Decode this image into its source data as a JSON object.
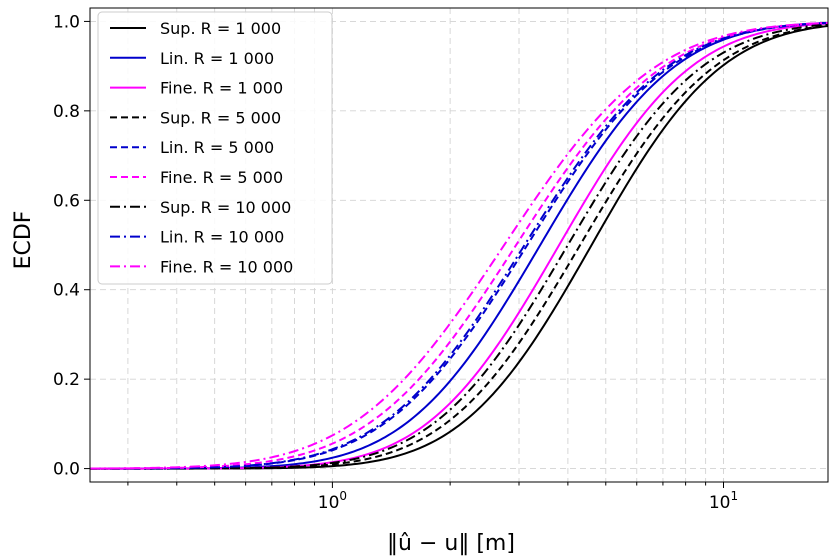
{
  "chart_data": {
    "type": "line",
    "title": "",
    "xlabel": "‖û − u‖ [m]",
    "ylabel": "ECDF",
    "xscale": "log",
    "xlim": [
      0.24,
      18.5
    ],
    "ylim": [
      -0.03,
      1.03
    ],
    "grid": true,
    "legend_position": "top-left",
    "x_ticks": [
      {
        "value": 1,
        "base": "10",
        "exp": "0"
      },
      {
        "value": 10,
        "base": "10",
        "exp": "1"
      }
    ],
    "y_ticks": [
      {
        "value": 0.0,
        "label": "0.0"
      },
      {
        "value": 0.2,
        "label": "0.2"
      },
      {
        "value": 0.4,
        "label": "0.4"
      },
      {
        "value": 0.6,
        "label": "0.6"
      },
      {
        "value": 0.8,
        "label": "0.8"
      },
      {
        "value": 1.0,
        "label": "1.0"
      }
    ],
    "series": [
      {
        "name": "Sup. R = 1 000",
        "color": "#000000",
        "dash": "solid",
        "median": 4.6,
        "sigma": 0.6
      },
      {
        "name": "Lin. R = 1 000",
        "color": "#0000cc",
        "dash": "solid",
        "median": 3.4,
        "sigma": 0.62
      },
      {
        "name": "Fine. R = 1 000",
        "color": "#ff00ff",
        "dash": "solid",
        "median": 3.8,
        "sigma": 0.61
      },
      {
        "name": "Sup. R = 5 000",
        "color": "#000000",
        "dash": "dashed",
        "median": 4.3,
        "sigma": 0.62
      },
      {
        "name": "Lin. R = 5 000",
        "color": "#0000cc",
        "dash": "dashed",
        "median": 3.15,
        "sigma": 0.66
      },
      {
        "name": "Fine. R = 5 000",
        "color": "#ff00ff",
        "dash": "dashed",
        "median": 2.95,
        "sigma": 0.68
      },
      {
        "name": "Sup. R = 10 000",
        "color": "#000000",
        "dash": "dashdot",
        "median": 4.0,
        "sigma": 0.62
      },
      {
        "name": "Lin. R = 10 000",
        "color": "#0000cc",
        "dash": "dashdot",
        "median": 3.1,
        "sigma": 0.66
      },
      {
        "name": "Fine. R = 10 000",
        "color": "#ff00ff",
        "dash": "dashdot",
        "median": 2.75,
        "sigma": 0.7
      }
    ]
  }
}
